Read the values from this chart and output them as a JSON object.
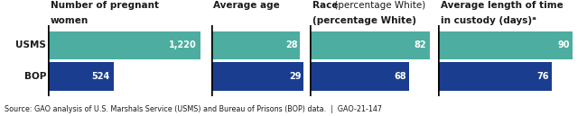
{
  "groups": [
    {
      "title_line1": "Number of pregnant",
      "title_line2": "women",
      "usms_value": 1220,
      "bop_value": 524,
      "max_value": 1220,
      "label_usms": "1,220",
      "label_bop": "524",
      "race_mixed": false
    },
    {
      "title_line1": "Average age",
      "title_line2": "",
      "usms_value": 28,
      "bop_value": 29,
      "max_value": 29,
      "label_usms": "28",
      "label_bop": "29",
      "race_mixed": false
    },
    {
      "title_line1": "Race",
      "title_line2": "(percentage White)",
      "usms_value": 82,
      "bop_value": 68,
      "max_value": 82,
      "label_usms": "82",
      "label_bop": "68",
      "race_mixed": true
    },
    {
      "title_line1": "Average length of time",
      "title_line2": "in custody (days)ᵃ",
      "usms_value": 90,
      "bop_value": 76,
      "max_value": 90,
      "label_usms": "90",
      "label_bop": "76",
      "race_mixed": false
    }
  ],
  "row_labels": [
    "USMS",
    "BOP"
  ],
  "usms_color": "#4dada0",
  "bop_color": "#1a3d8f",
  "text_color_white": "#ffffff",
  "text_color_dark": "#1a1a1a",
  "source_text": "Source: GAO analysis of U.S. Marshals Service (USMS) and Bureau of Prisons (BOP) data.  |  GAO-21-147",
  "background_color": "#ffffff"
}
